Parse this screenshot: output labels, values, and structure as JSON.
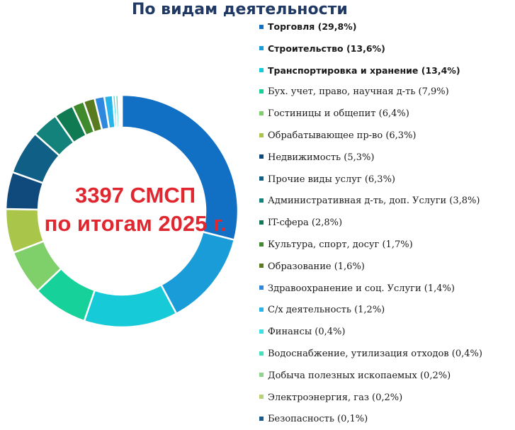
{
  "chart_data": {
    "type": "pie",
    "title": "По видам деятельности",
    "center_text": [
      "3397 СМСП",
      "по итогам 2025 г."
    ],
    "legend_position": "right",
    "slices": [
      {
        "label": "Торговля (29,8%)",
        "value": 29.8,
        "color": "#1170c4",
        "bold": true
      },
      {
        "label": "Строительство  (13,6%)",
        "value": 13.6,
        "color": "#1a9cd8",
        "bold": true
      },
      {
        "label": "Транспортировка и хранение (13,4%)",
        "value": 13.4,
        "color": "#17cad8",
        "bold": true
      },
      {
        "label": "Бух. учет, право, научная д-ть (7,9%)",
        "value": 7.9,
        "color": "#16d199",
        "bold": false
      },
      {
        "label": "Гостиницы и общепит (6,4%)",
        "value": 6.4,
        "color": "#7fd06a",
        "bold": false
      },
      {
        "label": "Обрабатывающее пр-во (6,3%)",
        "value": 6.3,
        "color": "#a9c64b",
        "bold": false
      },
      {
        "label": "Недвижимость (5,3%)",
        "value": 5.3,
        "color": "#104a7c",
        "bold": false
      },
      {
        "label": "Прочие виды услуг (6,3%)",
        "value": 6.3,
        "color": "#0f5f86",
        "bold": false
      },
      {
        "label": "Административная д-ть, доп. Услуги (3,8%)",
        "value": 3.8,
        "color": "#13827a",
        "bold": false
      },
      {
        "label": "IT-сфера (2,8%)",
        "value": 2.8,
        "color": "#107a52",
        "bold": false
      },
      {
        "label": "Культура, спорт, досуг (1,7%)",
        "value": 1.7,
        "color": "#3f8a2c",
        "bold": false
      },
      {
        "label": "Образование (1,6%)",
        "value": 1.6,
        "color": "#5a7a20",
        "bold": false
      },
      {
        "label": "Здравоохранение и соц. Услуги (1,4%)",
        "value": 1.4,
        "color": "#2f88e0",
        "bold": false
      },
      {
        "label": "С/х деятельность (1,2%)",
        "value": 1.2,
        "color": "#27b4e8",
        "bold": false
      },
      {
        "label": "Финансы (0,4%)",
        "value": 0.4,
        "color": "#3de0e8",
        "bold": false
      },
      {
        "label": "Водоснабжение, утилизация отходов (0,4%)",
        "value": 0.4,
        "color": "#46e0bf",
        "bold": false
      },
      {
        "label": "Добыча полезных ископаемых (0,2%)",
        "value": 0.2,
        "color": "#8ed48c",
        "bold": false
      },
      {
        "label": "Электроэнергия, газ (0,2%)",
        "value": 0.2,
        "color": "#b8d07a",
        "bold": false
      },
      {
        "label": "Безопасность (0,1%)",
        "value": 0.1,
        "color": "#1d5a8c",
        "bold": false
      }
    ]
  }
}
